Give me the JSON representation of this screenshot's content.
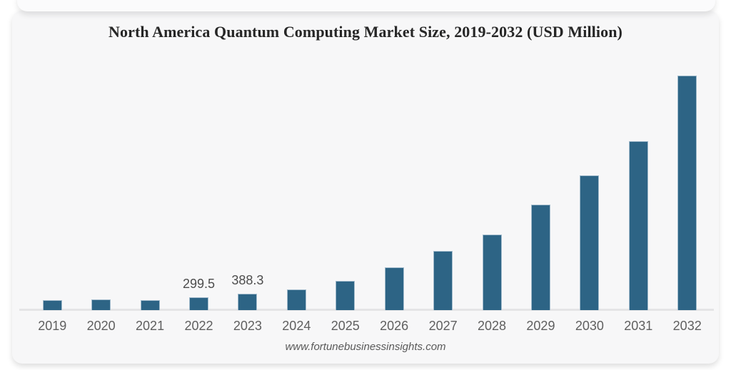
{
  "title": "North America Quantum Computing Market Size, 2019-2032 (USD Million)",
  "footer": {
    "url_label": "www.fortunebusinessinsights.com"
  },
  "colors": {
    "page_bg": "#ffffff",
    "card_bg": "#f7f7f8",
    "back_card_bg": "#fbfbfc",
    "bar_fill": "#2d6485",
    "bar_border": "#a3bccd",
    "axis_line": "#e4e4e6",
    "title_text": "#262626",
    "axis_label_text": "#5f5f5f",
    "data_label_text": "#4d4d4d",
    "footer_text": "#595959"
  },
  "chart_data": {
    "type": "bar",
    "title": "North America Quantum Computing Market Size, 2019-2032 (USD Million)",
    "xlabel": "",
    "ylabel": "",
    "units": "USD Million",
    "categories": [
      "2019",
      "2020",
      "2021",
      "2022",
      "2023",
      "2024",
      "2025",
      "2026",
      "2027",
      "2028",
      "2029",
      "2030",
      "2031",
      "2032"
    ],
    "values": [
      235,
      248,
      240,
      299.5,
      388.3,
      485,
      675,
      985,
      1365,
      1760,
      2445,
      3125,
      3910,
      5430
    ],
    "data_labels": {
      "2022": "299.5",
      "2023": "388.3"
    },
    "ylim": [
      0,
      5600
    ],
    "grid": false,
    "legend": false,
    "y_axis_shown": false,
    "bar_color": "#2d6485",
    "source_label": "www.fortunebusinessinsights.com"
  }
}
